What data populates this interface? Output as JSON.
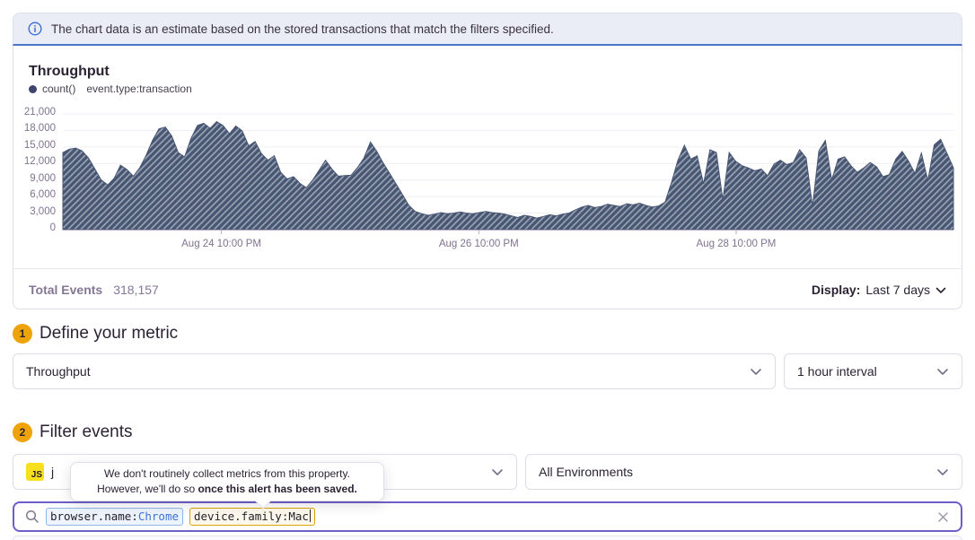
{
  "banner": {
    "text": "The chart data is an estimate based on the stored transactions that match the filters specified."
  },
  "chart_panel": {
    "title": "Throughput",
    "legend": {
      "series_label": "count()",
      "query_label": "event.type:transaction"
    },
    "footer": {
      "total_label": "Total Events",
      "total_value": "318,157",
      "display_label": "Display:",
      "display_value": "Last 7 days"
    }
  },
  "chart_data": {
    "type": "area",
    "title": "Throughput",
    "style": "hatched-area",
    "grid": "horizontal",
    "ylim": [
      0,
      21000
    ],
    "y_ticks": [
      "0",
      "3,000",
      "6,000",
      "9,000",
      "12,000",
      "15,000",
      "18,000",
      "21,000"
    ],
    "x_ticks": [
      "Aug 24 10:00 PM",
      "Aug 26 10:00 PM",
      "Aug 28 10:00 PM"
    ],
    "x_tick_positions": [
      0.178,
      0.467,
      0.756
    ],
    "colors": {
      "area": "#475672",
      "hatch": "rgba(255,255,255,0.45)",
      "grid": "#efecf4",
      "axis": "#b5a9c2"
    },
    "series": [
      {
        "name": "count() event.type:transaction",
        "values": [
          14000,
          14600,
          14800,
          14300,
          13000,
          11000,
          9000,
          8100,
          9300,
          11700,
          10900,
          9700,
          11200,
          13500,
          16200,
          18300,
          18600,
          17000,
          14000,
          13200,
          16500,
          18900,
          19300,
          18400,
          19600,
          18900,
          17400,
          18800,
          17900,
          15200,
          16000,
          13800,
          12600,
          13400,
          10400,
          9200,
          9600,
          8400,
          7600,
          9000,
          10800,
          12600,
          11000,
          9700,
          9800,
          9900,
          11300,
          13000,
          15900,
          14200,
          12100,
          10200,
          8300,
          6400,
          4400,
          3300,
          2900,
          2600,
          2800,
          3100,
          2900,
          3000,
          3200,
          3000,
          2900,
          3100,
          3300,
          3100,
          3000,
          2800,
          2500,
          2200,
          2600,
          2400,
          2100,
          2400,
          2700,
          2500,
          2800,
          3000,
          3600,
          4100,
          4400,
          4000,
          4200,
          4600,
          4400,
          4200,
          4700,
          4500,
          4800,
          4400,
          4100,
          4300,
          5000,
          8600,
          12600,
          15300,
          12800,
          13400,
          8300,
          14500,
          14000,
          5400,
          14000,
          12400,
          11600,
          11200,
          10700,
          11000,
          9800,
          11900,
          12600,
          11800,
          12200,
          14500,
          13000,
          4200,
          14300,
          16200,
          9000,
          12800,
          13200,
          11600,
          10400,
          11200,
          12200,
          11400,
          9600,
          10000,
          12800,
          14200,
          12400,
          10200,
          13900,
          8900,
          15400,
          16400,
          13800,
          11200
        ]
      }
    ]
  },
  "sections": {
    "metric": {
      "number": "1",
      "title": "Define your metric",
      "metric_select": "Throughput",
      "interval_select": "1 hour interval"
    },
    "filter": {
      "number": "2",
      "title": "Filter events",
      "project_badge": "JS",
      "project_select": "j",
      "environment_select": "All Environments"
    }
  },
  "tooltip": {
    "line1": "We don't routinely collect metrics from this property.",
    "line2_normal": "However, we'll do so ",
    "line2_bold": "once this alert has been saved."
  },
  "search": {
    "tokens": [
      {
        "key": "browser.name:",
        "value": "Chrome",
        "type": "blue"
      },
      {
        "key": "device.family:",
        "value": "Mac",
        "type": "amber"
      }
    ]
  },
  "icons": {
    "banner": "info-icon",
    "search": "search-icon",
    "clear": "close-icon",
    "selects": "chevron-down-icon",
    "legend": "series-dot"
  }
}
